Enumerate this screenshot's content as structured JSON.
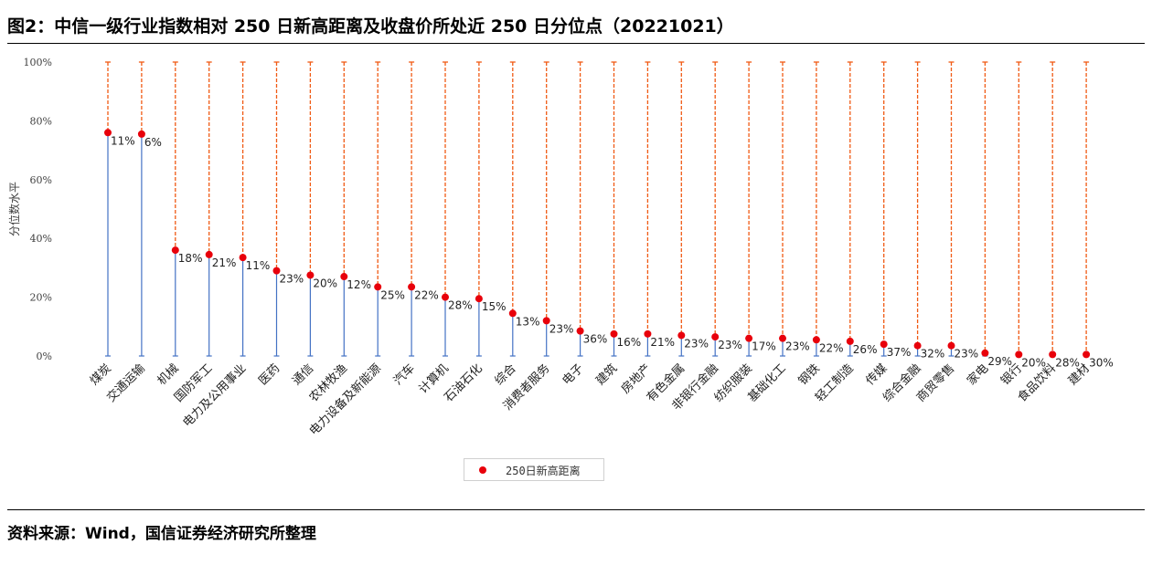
{
  "title": "图2：中信一级行业指数相对 250 日新高距离及收盘价所处近 250 日分位点（20221021）",
  "source": "资料来源：Wind，国信证券经济研究所整理",
  "colors": {
    "dot": "#e8000b",
    "stem": "#4472c4",
    "upper_line": "#f05a14",
    "axis_text": "#404040"
  },
  "chart_data": {
    "type": "dot-stem",
    "ylabel": "分位数水平",
    "ylim": [
      0,
      1
    ],
    "yticks": [
      "0%",
      "20%",
      "40%",
      "60%",
      "80%",
      "100%"
    ],
    "legend": {
      "label": "250日新高距离",
      "position": "bottom"
    },
    "categories": [
      "煤炭",
      "交通运输",
      "机械",
      "国防军工",
      "电力及公用事业",
      "医药",
      "通信",
      "农林牧渔",
      "电力设备及新能源",
      "汽车",
      "计算机",
      "石油石化",
      "综合",
      "消费者服务",
      "电子",
      "建筑",
      "房地产",
      "有色金属",
      "非银行金融",
      "纺织服装",
      "基础化工",
      "钢铁",
      "轻工制造",
      "传媒",
      "综合金融",
      "商贸零售",
      "家电",
      "银行",
      "食品饮料",
      "建材"
    ],
    "percentile": [
      0.76,
      0.755,
      0.36,
      0.345,
      0.335,
      0.29,
      0.275,
      0.27,
      0.235,
      0.235,
      0.2,
      0.195,
      0.145,
      0.12,
      0.085,
      0.075,
      0.075,
      0.07,
      0.065,
      0.06,
      0.06,
      0.055,
      0.05,
      0.04,
      0.035,
      0.035,
      0.01,
      0.005,
      0.005,
      0.005
    ],
    "distance_labels": [
      "11%",
      "6%",
      "18%",
      "21%",
      "11%",
      "23%",
      "20%",
      "12%",
      "25%",
      "22%",
      "28%",
      "15%",
      "13%",
      "23%",
      "36%",
      "16%",
      "21%",
      "23%",
      "23%",
      "17%",
      "23%",
      "22%",
      "26%",
      "37%",
      "32%",
      "23%",
      "29%",
      "20%",
      "28%",
      "30%"
    ]
  }
}
